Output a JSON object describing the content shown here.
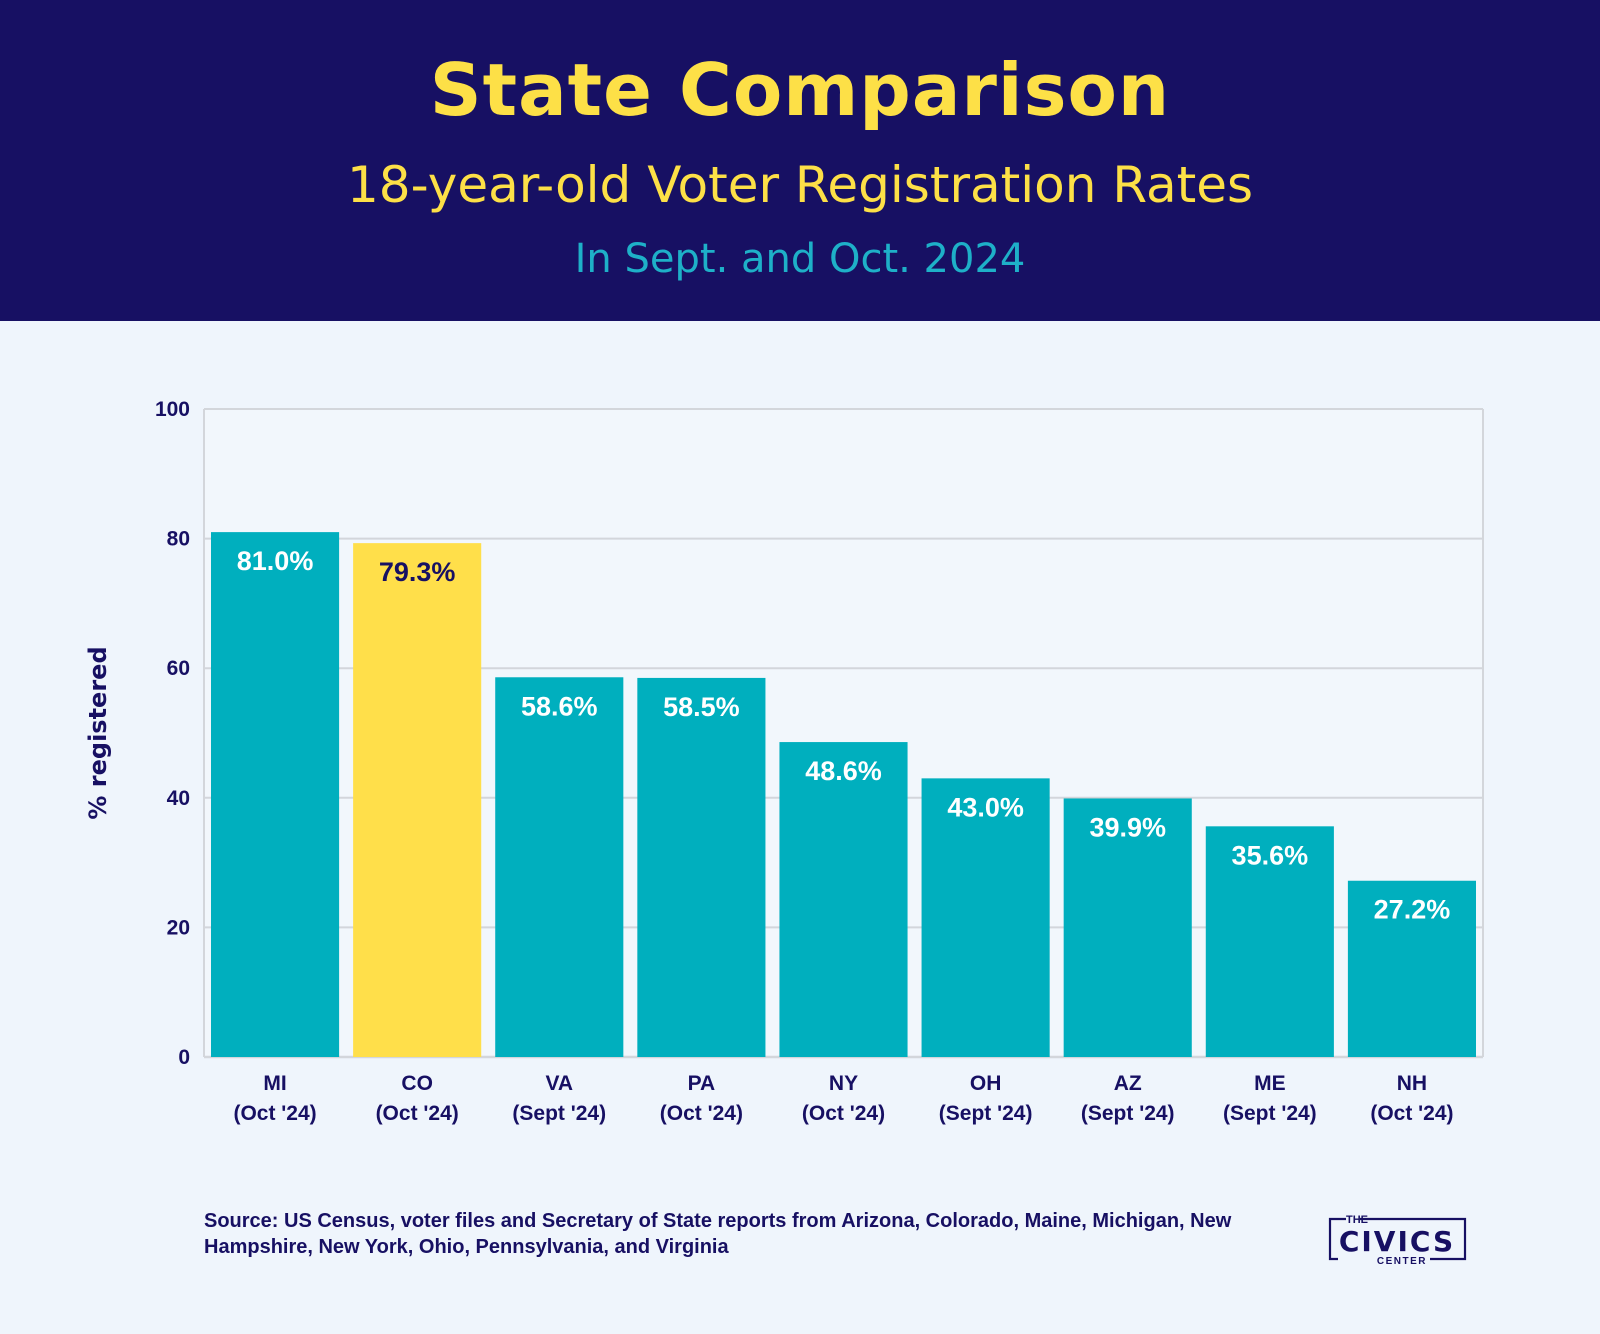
{
  "header": {
    "title": "State Comparison",
    "subtitle": "18-year-old Voter Registration Rates",
    "subsubtitle": "In Sept. and Oct. 2024"
  },
  "chart_data": {
    "type": "bar",
    "categories": [
      [
        "MI",
        "(Oct '24)"
      ],
      [
        "CO",
        "(Oct '24)"
      ],
      [
        "VA",
        "(Sept '24)"
      ],
      [
        "PA",
        "(Oct '24)"
      ],
      [
        "NY",
        "(Oct '24)"
      ],
      [
        "OH",
        "(Sept '24)"
      ],
      [
        "AZ",
        "(Sept '24)"
      ],
      [
        "ME",
        "(Sept '24)"
      ],
      [
        "NH",
        "(Oct '24)"
      ]
    ],
    "values": [
      81.0,
      79.3,
      58.6,
      58.5,
      48.6,
      43.0,
      39.9,
      35.6,
      27.2
    ],
    "value_labels": [
      "81.0%",
      "79.3%",
      "58.6%",
      "58.5%",
      "48.6%",
      "43.0%",
      "39.9%",
      "35.6%",
      "27.2%"
    ],
    "highlight_index": 1,
    "ylabel": "% registered",
    "xlabel": "",
    "ylim": [
      0,
      100
    ],
    "yticks": [
      0,
      20,
      40,
      60,
      80,
      100
    ],
    "grid": true,
    "colors": {
      "bar": "#00afbe",
      "highlight": "#ffdf4a",
      "label_on_bar": "#ffffff",
      "label_on_highlight": "#171063",
      "grid": "#d3d6db",
      "axis_text": "#171063"
    }
  },
  "source": "Source: US Census, voter files and Secretary of State reports from Arizona, Colorado, Maine, Michigan, New Hampshire, New York, Ohio, Pennsylvania, and Virginia",
  "logo": {
    "top": "THE",
    "main": "CIVICS",
    "bottom": "CENTER"
  }
}
